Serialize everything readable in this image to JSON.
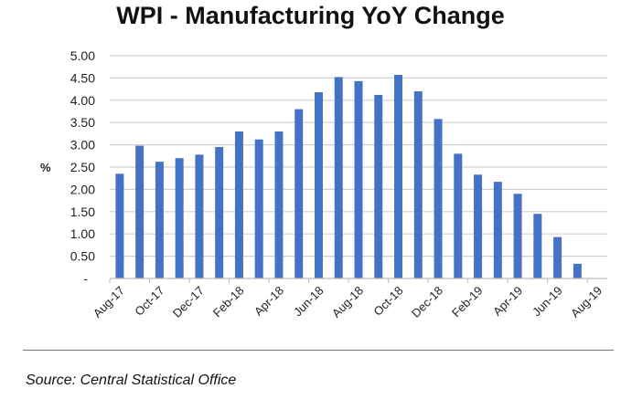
{
  "chart_data": {
    "type": "bar",
    "title": "WPI - Manufacturing YoY Change",
    "xlabel": "",
    "ylabel": "%",
    "ylim": [
      0,
      5
    ],
    "yticks": [
      "-",
      "0.50",
      "1.00",
      "1.50",
      "2.00",
      "2.50",
      "3.00",
      "3.50",
      "4.00",
      "4.50",
      "5.00"
    ],
    "grid": true,
    "categories": [
      "Aug-17",
      "Sep-17",
      "Oct-17",
      "Nov-17",
      "Dec-17",
      "Jan-18",
      "Feb-18",
      "Mar-18",
      "Apr-18",
      "May-18",
      "Jun-18",
      "Jul-18",
      "Aug-18",
      "Sep-18",
      "Oct-18",
      "Nov-18",
      "Dec-18",
      "Jan-19",
      "Feb-19",
      "Mar-19",
      "Apr-19",
      "May-19",
      "Jun-19",
      "Jul-19",
      "Aug-19"
    ],
    "xtick_labels": [
      "Aug-17",
      "Oct-17",
      "Dec-17",
      "Feb-18",
      "Apr-18",
      "Jun-18",
      "Aug-18",
      "Oct-18",
      "Dec-18",
      "Feb-19",
      "Apr-19",
      "Jun-19",
      "Aug-19"
    ],
    "values": [
      2.35,
      2.98,
      2.62,
      2.7,
      2.78,
      2.95,
      3.3,
      3.12,
      3.3,
      3.8,
      4.18,
      4.52,
      4.43,
      4.12,
      4.57,
      4.2,
      3.58,
      2.8,
      2.33,
      2.17,
      1.9,
      1.45,
      0.93,
      0.33,
      null
    ],
    "bar_color": "#4472C4"
  },
  "source": "Source: Central Statistical Office"
}
